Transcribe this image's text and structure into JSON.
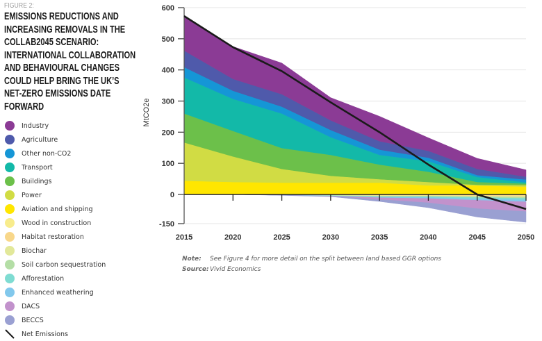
{
  "figure": {
    "label": "FIGURE 2:",
    "title": "Emissions reductions and increasing removals in the Collab2045 scenario: international collaboration and behavioural changes could help bring the UK’s net-zero emissions date forward"
  },
  "notes": [
    {
      "key": "Note:",
      "text": "See Figure 4 for more detail on the split between land based GGR options"
    },
    {
      "key": "Source:",
      "text": "Vivid Economics"
    }
  ],
  "chart_data": {
    "type": "area",
    "title": "Emissions reductions and increasing removals in the Collab2045 scenario",
    "xlabel": "",
    "ylabel": "MtCO2e",
    "x": [
      2015,
      2020,
      2025,
      2030,
      2035,
      2040,
      2045,
      2050
    ],
    "x_ticks": [
      "2015",
      "2020",
      "2025",
      "2030",
      "2035",
      "2040",
      "2045",
      "2050"
    ],
    "y_ticks": [
      "600",
      "500",
      "400",
      "300",
      "200",
      "100",
      "0",
      "-150"
    ],
    "y_tick_values": [
      600,
      500,
      400,
      300,
      200,
      100,
      0,
      -150
    ],
    "ylim": [
      -150,
      600
    ],
    "grid": true,
    "stacking": "stacked",
    "legend_position": "left",
    "positive_series": [
      {
        "name": "Aviation and shipping",
        "color": "#ffe600",
        "values": [
          44,
          40,
          38,
          38,
          38,
          29,
          29,
          25
        ]
      },
      {
        "name": "Power",
        "color": "#d1dc44",
        "values": [
          123,
          82,
          44,
          22,
          11,
          11,
          2,
          5
        ]
      },
      {
        "name": "Buildings",
        "color": "#6cc04a",
        "values": [
          93,
          82,
          67,
          67,
          47,
          33,
          9,
          5
        ]
      },
      {
        "name": "Transport",
        "color": "#13b9a8",
        "values": [
          116,
          103,
          111,
          57,
          31,
          34,
          16,
          4
        ]
      },
      {
        "name": "Other non-CO2",
        "color": "#1596d6",
        "values": [
          33,
          26,
          22,
          23,
          17,
          11,
          6,
          9
        ]
      },
      {
        "name": "Agriculture",
        "color": "#4f5aab",
        "values": [
          53,
          38,
          40,
          31,
          27,
          22,
          20,
          9
        ]
      },
      {
        "name": "Industry",
        "color": "#8b3b95",
        "values": [
          111,
          104,
          100,
          73,
          80,
          42,
          34,
          22
        ]
      }
    ],
    "negative_series": [
      {
        "name": "Wood in construction",
        "color": "#f8ec8c",
        "values": [
          0,
          0,
          -1,
          -2,
          -3,
          -3,
          -4,
          -5
        ]
      },
      {
        "name": "Habitat restoration",
        "color": "#f8d78a",
        "values": [
          0,
          0,
          -1,
          -2,
          -3,
          -3,
          -4,
          -5
        ]
      },
      {
        "name": "Biochar",
        "color": "#e2e89a",
        "values": [
          0,
          0,
          0,
          -1,
          -2,
          -2,
          -3,
          -4
        ]
      },
      {
        "name": "Soil carbon sequestration",
        "color": "#b4dea6",
        "values": [
          0,
          0,
          -1,
          -1,
          -3,
          -4,
          -5,
          -6
        ]
      },
      {
        "name": "Afforestation",
        "color": "#7fdcd2",
        "values": [
          0,
          0,
          -1,
          -1,
          -3,
          -4,
          -6,
          -8
        ]
      },
      {
        "name": "Enhanced weathering",
        "color": "#82c8ec",
        "values": [
          0,
          0,
          0,
          -1,
          -3,
          -5,
          -8,
          -10
        ]
      },
      {
        "name": "DACS",
        "color": "#c292cc",
        "values": [
          0,
          0,
          0,
          -1,
          -9,
          -22,
          -43,
          -50
        ]
      },
      {
        "name": "BECCS",
        "color": "#9aa0d2",
        "values": [
          0,
          0,
          -1,
          -2,
          -10,
          -25,
          -43,
          -55
        ]
      }
    ],
    "line_series": {
      "name": "Net Emissions",
      "color": "#1a1a1a",
      "values": [
        573,
        473,
        396,
        296,
        200,
        96,
        0,
        -75
      ]
    }
  },
  "legend": [
    {
      "label": "Industry",
      "color": "#8b3b95",
      "icon": "dot"
    },
    {
      "label": "Agriculture",
      "color": "#4f5aab",
      "icon": "dot"
    },
    {
      "label": "Other non-CO2",
      "color": "#1596d6",
      "icon": "dot"
    },
    {
      "label": "Transport",
      "color": "#13b9a8",
      "icon": "dot"
    },
    {
      "label": "Buildings",
      "color": "#6cc04a",
      "icon": "dot"
    },
    {
      "label": "Power",
      "color": "#d1dc44",
      "icon": "dot"
    },
    {
      "label": "Aviation and shipping",
      "color": "#ffe600",
      "icon": "dot"
    },
    {
      "label": "Wood in construction",
      "color": "#f8ec8c",
      "icon": "dot"
    },
    {
      "label": "Habitat restoration",
      "color": "#f8d78a",
      "icon": "dot"
    },
    {
      "label": "Biochar",
      "color": "#e2e89a",
      "icon": "dot"
    },
    {
      "label": "Soil carbon sequestration",
      "color": "#b4dea6",
      "icon": "dot"
    },
    {
      "label": "Afforestation",
      "color": "#7fdcd2",
      "icon": "dot"
    },
    {
      "label": "Enhanced weathering",
      "color": "#82c8ec",
      "icon": "dot"
    },
    {
      "label": "DACS",
      "color": "#c292cc",
      "icon": "dot"
    },
    {
      "label": "BECCS",
      "color": "#9aa0d2",
      "icon": "dot"
    },
    {
      "label": "Net Emissions",
      "color": "#1a1a1a",
      "icon": "line"
    }
  ]
}
